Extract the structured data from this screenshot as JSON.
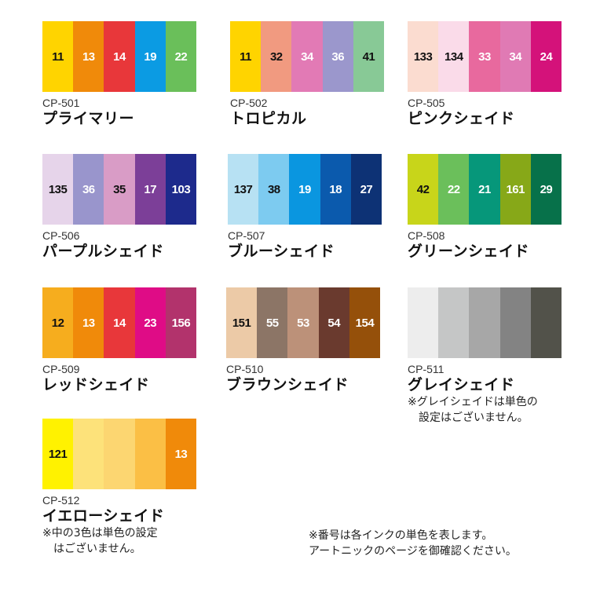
{
  "sets": [
    {
      "code": "CP-501",
      "name": "プライマリー",
      "swatches": [
        {
          "n": "11",
          "c": "#ffd400",
          "t": "#111"
        },
        {
          "n": "13",
          "c": "#f08a0a",
          "t": "#fff"
        },
        {
          "n": "14",
          "c": "#e8373a",
          "t": "#fff"
        },
        {
          "n": "19",
          "c": "#0b9be3",
          "t": "#fff"
        },
        {
          "n": "22",
          "c": "#6abf5a",
          "t": "#fff"
        }
      ]
    },
    {
      "code": "CP-502",
      "name": "トロピカル",
      "swatches": [
        {
          "n": "11",
          "c": "#ffd400",
          "t": "#111"
        },
        {
          "n": "32",
          "c": "#f19a80",
          "t": "#111"
        },
        {
          "n": "34",
          "c": "#e27ab5",
          "t": "#fff"
        },
        {
          "n": "36",
          "c": "#9b97cc",
          "t": "#fff"
        },
        {
          "n": "41",
          "c": "#88c996",
          "t": "#111"
        }
      ]
    },
    {
      "code": "CP-505",
      "name": "ピンクシェイド",
      "swatches": [
        {
          "n": "133",
          "c": "#fbdcd0",
          "t": "#111"
        },
        {
          "n": "134",
          "c": "#fadbe9",
          "t": "#111"
        },
        {
          "n": "33",
          "c": "#e8699e",
          "t": "#fff"
        },
        {
          "n": "34",
          "c": "#e07ab4",
          "t": "#fff"
        },
        {
          "n": "24",
          "c": "#d4127a",
          "t": "#fff"
        }
      ]
    },
    {
      "code": "CP-506",
      "name": "パープルシェイド",
      "swatches": [
        {
          "n": "135",
          "c": "#e6d4ea",
          "t": "#111"
        },
        {
          "n": "36",
          "c": "#9995cc",
          "t": "#fff"
        },
        {
          "n": "35",
          "c": "#d99cc6",
          "t": "#111"
        },
        {
          "n": "17",
          "c": "#7c3f98",
          "t": "#fff"
        },
        {
          "n": "103",
          "c": "#1d2a8c",
          "t": "#fff"
        }
      ]
    },
    {
      "code": "CP-507",
      "name": "ブルーシェイド",
      "swatches": [
        {
          "n": "137",
          "c": "#b7e1f3",
          "t": "#111"
        },
        {
          "n": "38",
          "c": "#7dcbf0",
          "t": "#111"
        },
        {
          "n": "19",
          "c": "#0a96e0",
          "t": "#fff"
        },
        {
          "n": "18",
          "c": "#0b5aad",
          "t": "#fff"
        },
        {
          "n": "27",
          "c": "#0d3275",
          "t": "#fff"
        }
      ]
    },
    {
      "code": "CP-508",
      "name": "グリーンシェイド",
      "swatches": [
        {
          "n": "42",
          "c": "#c8d51a",
          "t": "#111"
        },
        {
          "n": "22",
          "c": "#6bbf5b",
          "t": "#fff"
        },
        {
          "n": "21",
          "c": "#06977a",
          "t": "#fff"
        },
        {
          "n": "161",
          "c": "#87a818",
          "t": "#fff"
        },
        {
          "n": "29",
          "c": "#07714a",
          "t": "#fff"
        }
      ]
    },
    {
      "code": "CP-509",
      "name": "レッドシェイド",
      "swatches": [
        {
          "n": "12",
          "c": "#f6ad1e",
          "t": "#111"
        },
        {
          "n": "13",
          "c": "#f08a0a",
          "t": "#fff"
        },
        {
          "n": "14",
          "c": "#e8373a",
          "t": "#fff"
        },
        {
          "n": "23",
          "c": "#df0c86",
          "t": "#fff"
        },
        {
          "n": "156",
          "c": "#b2336c",
          "t": "#fff"
        }
      ]
    },
    {
      "code": "CP-510",
      "name": "ブラウンシェイド",
      "swatches": [
        {
          "n": "151",
          "c": "#eccaa7",
          "t": "#111"
        },
        {
          "n": "55",
          "c": "#8c7566",
          "t": "#fff"
        },
        {
          "n": "53",
          "c": "#bc9179",
          "t": "#fff"
        },
        {
          "n": "54",
          "c": "#6a3a2e",
          "t": "#fff"
        },
        {
          "n": "154",
          "c": "#95500a",
          "t": "#fff"
        }
      ]
    },
    {
      "code": "CP-511",
      "name": "グレイシェイド",
      "note": "※グレイシェイドは単色の\n　設定はございません。",
      "swatches": [
        {
          "n": "",
          "c": "#ededed",
          "t": "#111"
        },
        {
          "n": "",
          "c": "#c5c6c6",
          "t": "#111"
        },
        {
          "n": "",
          "c": "#a7a7a7",
          "t": "#111"
        },
        {
          "n": "",
          "c": "#838383",
          "t": "#fff"
        },
        {
          "n": "",
          "c": "#52524a",
          "t": "#fff"
        }
      ]
    },
    {
      "code": "CP-512",
      "name": "イエローシェイド",
      "note": "※中の3色は単色の設定\n　はございません。",
      "swatches": [
        {
          "n": "121",
          "c": "#fff200",
          "t": "#111"
        },
        {
          "n": "",
          "c": "#fde27a",
          "t": "#111"
        },
        {
          "n": "",
          "c": "#fcd671",
          "t": "#111"
        },
        {
          "n": "",
          "c": "#fbbf45",
          "t": "#111"
        },
        {
          "n": "13",
          "c": "#f08a0a",
          "t": "#fff"
        }
      ]
    }
  ],
  "general_note": "※番号は各インクの単色を表します。\nアートニックのページを御確認ください。"
}
